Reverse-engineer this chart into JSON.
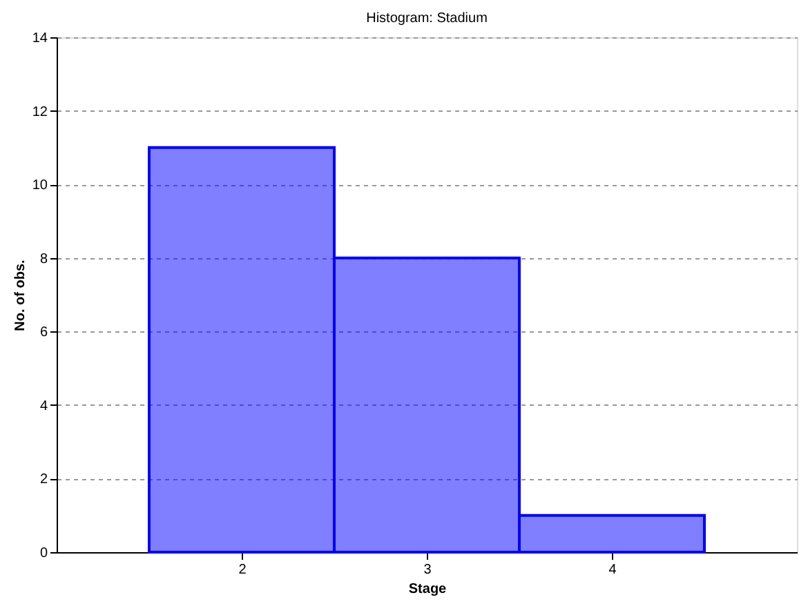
{
  "chart_data": {
    "type": "histogram",
    "title": "Histogram: Stadium",
    "xlabel": "Stage",
    "ylabel": "No. of obs.",
    "bins": [
      1.5,
      2.5,
      3.5,
      4.5
    ],
    "values": [
      11,
      8,
      1
    ],
    "color": "#0000ff",
    "xlim": [
      1,
      5
    ],
    "xticks": [
      2,
      3,
      4
    ],
    "ylim": [
      0,
      14
    ],
    "yticks": [
      0,
      2,
      4,
      6,
      8,
      10,
      12,
      14
    ],
    "grid": "y"
  }
}
